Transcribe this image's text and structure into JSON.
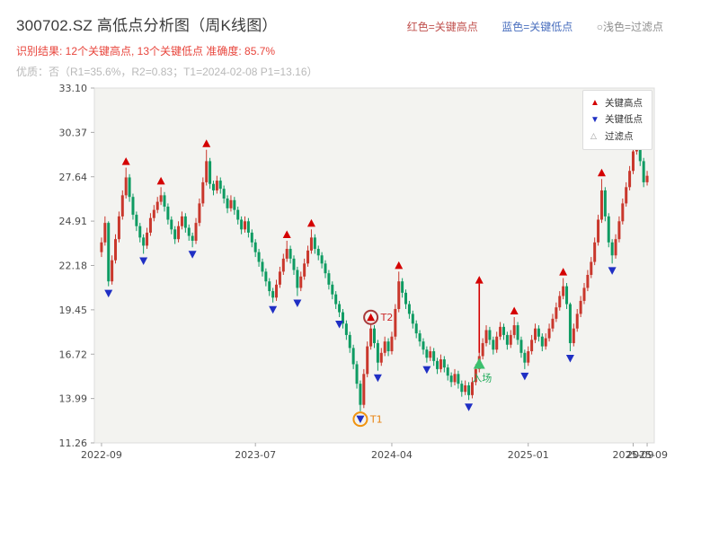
{
  "header": {
    "title": "300702.SZ 高低点分析图（周K线图）",
    "legend_high": "红色=关键高点",
    "legend_low": "蓝色=关键低点",
    "legend_filter": "○浅色=过滤点",
    "result_line": "识别结果: 12个关键高点, 13个关键低点  准确度: 85.7%",
    "quality_line": "优质：否（R1=35.6%，R2=0.83；T1=2024-02-08 P1=13.16）"
  },
  "chart_data": {
    "type": "candlestick",
    "title": "300702.SZ 高低点分析图（周K线图）",
    "ylim": [
      11.26,
      33.1
    ],
    "y_ticks": [
      33.1,
      30.37,
      27.64,
      24.91,
      22.18,
      19.45,
      16.72,
      13.99,
      11.26
    ],
    "x_ticks": [
      {
        "i": 0,
        "label": "2022-09"
      },
      {
        "i": 44,
        "label": "2023-07"
      },
      {
        "i": 83,
        "label": "2024-04"
      },
      {
        "i": 122,
        "label": "2025-01"
      },
      {
        "i": 152,
        "label": "2025-09"
      },
      {
        "i": 156,
        "label": "2025-09"
      }
    ],
    "inner_legend": {
      "high": "关键高点",
      "low": "关键低点",
      "filter": "过滤点"
    },
    "colors": {
      "up": "#c9372c",
      "down": "#0e9b62",
      "high_marker": "#d40000",
      "low_marker": "#1f2fc4",
      "plot_bg": "#f3f3f0",
      "plot_border": "#dddddd",
      "axis_text": "#4a4a4a"
    },
    "candles": [
      [
        23.0,
        23.9,
        22.7,
        23.6
      ],
      [
        23.6,
        25.2,
        23.4,
        24.8
      ],
      [
        24.8,
        24.9,
        20.9,
        21.2
      ],
      [
        21.2,
        22.8,
        21.0,
        22.5
      ],
      [
        22.5,
        24.1,
        22.3,
        23.8
      ],
      [
        23.8,
        25.5,
        23.6,
        25.2
      ],
      [
        25.2,
        26.8,
        25.0,
        26.5
      ],
      [
        26.5,
        28.2,
        26.3,
        27.6
      ],
      [
        27.6,
        27.8,
        26.1,
        26.4
      ],
      [
        26.4,
        26.6,
        25.0,
        25.3
      ],
      [
        25.3,
        25.5,
        24.3,
        24.6
      ],
      [
        24.6,
        24.8,
        23.6,
        23.9
      ],
      [
        23.9,
        24.1,
        22.9,
        23.4
      ],
      [
        23.4,
        24.5,
        23.2,
        24.2
      ],
      [
        24.2,
        25.4,
        24.0,
        25.1
      ],
      [
        25.1,
        25.9,
        24.9,
        25.6
      ],
      [
        25.6,
        26.4,
        25.4,
        26.1
      ],
      [
        26.1,
        27.0,
        25.9,
        26.5
      ],
      [
        26.5,
        26.7,
        25.5,
        25.8
      ],
      [
        25.8,
        26.0,
        24.7,
        25.0
      ],
      [
        25.0,
        25.2,
        24.1,
        24.4
      ],
      [
        24.4,
        24.6,
        23.5,
        23.8
      ],
      [
        23.8,
        24.9,
        23.6,
        24.6
      ],
      [
        24.6,
        25.5,
        24.4,
        25.2
      ],
      [
        25.2,
        25.4,
        24.2,
        24.5
      ],
      [
        24.5,
        24.7,
        23.7,
        24.0
      ],
      [
        24.0,
        24.2,
        23.3,
        23.7
      ],
      [
        23.7,
        25.1,
        23.5,
        24.8
      ],
      [
        24.8,
        26.3,
        24.6,
        26.0
      ],
      [
        26.0,
        27.6,
        25.8,
        27.3
      ],
      [
        27.3,
        29.3,
        27.1,
        28.6
      ],
      [
        28.6,
        28.8,
        26.9,
        27.2
      ],
      [
        27.2,
        27.4,
        26.5,
        26.8
      ],
      [
        26.8,
        27.7,
        26.6,
        27.4
      ],
      [
        27.4,
        27.6,
        26.6,
        26.9
      ],
      [
        26.9,
        27.1,
        26.0,
        26.3
      ],
      [
        26.3,
        26.5,
        25.4,
        25.7
      ],
      [
        25.7,
        26.5,
        25.5,
        26.2
      ],
      [
        26.2,
        26.4,
        25.3,
        25.6
      ],
      [
        25.6,
        25.8,
        24.7,
        25.0
      ],
      [
        25.0,
        25.2,
        24.1,
        24.4
      ],
      [
        24.4,
        25.2,
        24.2,
        24.9
      ],
      [
        24.9,
        25.1,
        23.9,
        24.2
      ],
      [
        24.2,
        24.4,
        23.3,
        23.6
      ],
      [
        23.6,
        23.8,
        22.7,
        23.0
      ],
      [
        23.0,
        23.2,
        22.1,
        22.4
      ],
      [
        22.4,
        22.6,
        21.5,
        21.8
      ],
      [
        21.8,
        22.0,
        20.9,
        21.2
      ],
      [
        21.2,
        21.4,
        20.3,
        20.6
      ],
      [
        20.6,
        20.8,
        19.9,
        20.2
      ],
      [
        20.2,
        21.3,
        20.0,
        21.0
      ],
      [
        21.0,
        22.1,
        20.8,
        21.8
      ],
      [
        21.8,
        22.9,
        21.6,
        22.6
      ],
      [
        22.6,
        23.7,
        22.4,
        23.2
      ],
      [
        23.2,
        23.4,
        22.3,
        22.6
      ],
      [
        22.6,
        22.8,
        21.6,
        21.9
      ],
      [
        21.9,
        22.1,
        20.3,
        20.8
      ],
      [
        20.8,
        21.8,
        20.6,
        21.5
      ],
      [
        21.5,
        22.6,
        21.3,
        22.3
      ],
      [
        22.3,
        23.4,
        22.1,
        23.1
      ],
      [
        23.1,
        24.4,
        22.9,
        23.9
      ],
      [
        23.9,
        24.1,
        22.9,
        23.2
      ],
      [
        23.2,
        23.4,
        22.5,
        22.8
      ],
      [
        22.8,
        23.0,
        22.0,
        22.3
      ],
      [
        22.3,
        22.5,
        21.4,
        21.7
      ],
      [
        21.7,
        21.9,
        20.7,
        21.0
      ],
      [
        21.0,
        21.2,
        20.1,
        20.4
      ],
      [
        20.4,
        20.6,
        19.5,
        19.8
      ],
      [
        19.8,
        20.0,
        19.0,
        19.3
      ],
      [
        19.3,
        19.5,
        18.3,
        18.6
      ],
      [
        18.6,
        18.8,
        17.6,
        17.9
      ],
      [
        17.9,
        18.1,
        16.8,
        17.1
      ],
      [
        17.1,
        17.3,
        15.8,
        16.1
      ],
      [
        16.1,
        16.3,
        14.6,
        14.9
      ],
      [
        14.9,
        15.1,
        13.2,
        13.6
      ],
      [
        13.6,
        15.8,
        13.4,
        15.5
      ],
      [
        15.5,
        17.5,
        15.3,
        17.2
      ],
      [
        17.2,
        18.6,
        17.0,
        18.3
      ],
      [
        18.3,
        18.5,
        17.1,
        17.4
      ],
      [
        17.4,
        17.6,
        15.7,
        16.2
      ],
      [
        16.2,
        17.1,
        16.0,
        16.8
      ],
      [
        16.8,
        17.8,
        16.6,
        17.5
      ],
      [
        17.5,
        17.7,
        16.6,
        16.9
      ],
      [
        16.9,
        18.1,
        16.7,
        17.8
      ],
      [
        17.8,
        19.8,
        17.6,
        19.5
      ],
      [
        19.5,
        21.8,
        19.3,
        21.2
      ],
      [
        21.2,
        21.4,
        20.2,
        20.5
      ],
      [
        20.5,
        20.7,
        19.5,
        19.8
      ],
      [
        19.8,
        20.0,
        18.9,
        19.2
      ],
      [
        19.2,
        19.4,
        18.3,
        18.6
      ],
      [
        18.6,
        18.8,
        17.7,
        18.0
      ],
      [
        18.0,
        18.2,
        17.2,
        17.5
      ],
      [
        17.5,
        17.7,
        16.7,
        17.0
      ],
      [
        17.0,
        17.2,
        16.2,
        16.5
      ],
      [
        16.5,
        17.2,
        16.3,
        16.9
      ],
      [
        16.9,
        17.1,
        16.0,
        16.3
      ],
      [
        16.3,
        16.5,
        15.5,
        15.8
      ],
      [
        15.8,
        16.7,
        15.6,
        16.4
      ],
      [
        16.4,
        16.6,
        15.6,
        15.9
      ],
      [
        15.9,
        16.1,
        15.1,
        15.4
      ],
      [
        15.4,
        15.6,
        14.7,
        15.0
      ],
      [
        15.0,
        15.8,
        14.8,
        15.5
      ],
      [
        15.5,
        15.7,
        14.6,
        14.9
      ],
      [
        14.9,
        15.1,
        14.1,
        14.4
      ],
      [
        14.4,
        15.1,
        14.2,
        14.8
      ],
      [
        14.8,
        15.0,
        13.9,
        14.2
      ],
      [
        14.2,
        15.3,
        14.0,
        15.0
      ],
      [
        15.0,
        16.1,
        14.8,
        15.8
      ],
      [
        15.8,
        17.0,
        15.6,
        16.6
      ],
      [
        16.6,
        17.7,
        16.4,
        17.4
      ],
      [
        17.4,
        18.5,
        17.2,
        18.2
      ],
      [
        18.2,
        18.4,
        17.3,
        17.6
      ],
      [
        17.6,
        17.8,
        16.7,
        17.0
      ],
      [
        17.0,
        18.1,
        16.8,
        17.8
      ],
      [
        17.8,
        18.7,
        17.6,
        18.4
      ],
      [
        18.4,
        18.6,
        17.6,
        17.9
      ],
      [
        17.9,
        18.1,
        17.0,
        17.3
      ],
      [
        17.3,
        18.2,
        17.1,
        17.9
      ],
      [
        17.9,
        19.0,
        17.7,
        18.5
      ],
      [
        18.5,
        18.7,
        17.3,
        17.6
      ],
      [
        17.6,
        17.8,
        16.5,
        16.8
      ],
      [
        16.8,
        17.0,
        15.8,
        16.2
      ],
      [
        16.2,
        17.2,
        16.0,
        16.9
      ],
      [
        16.9,
        17.9,
        16.7,
        17.6
      ],
      [
        17.6,
        18.6,
        17.4,
        18.3
      ],
      [
        18.3,
        18.5,
        17.5,
        17.8
      ],
      [
        17.8,
        18.0,
        16.9,
        17.2
      ],
      [
        17.2,
        18.0,
        17.0,
        17.7
      ],
      [
        17.7,
        18.6,
        17.5,
        18.3
      ],
      [
        18.3,
        19.2,
        18.1,
        18.9
      ],
      [
        18.9,
        19.9,
        18.7,
        19.6
      ],
      [
        19.6,
        20.6,
        19.4,
        20.3
      ],
      [
        20.3,
        21.4,
        20.1,
        20.9
      ],
      [
        20.9,
        21.1,
        19.5,
        19.8
      ],
      [
        19.8,
        19.9,
        16.9,
        17.4
      ],
      [
        17.4,
        18.6,
        17.2,
        18.3
      ],
      [
        18.3,
        19.5,
        18.1,
        19.2
      ],
      [
        19.2,
        20.3,
        19.0,
        20.0
      ],
      [
        20.0,
        21.1,
        19.8,
        20.8
      ],
      [
        20.8,
        21.9,
        20.6,
        21.6
      ],
      [
        21.6,
        22.7,
        21.4,
        22.4
      ],
      [
        22.4,
        23.9,
        22.2,
        23.6
      ],
      [
        23.6,
        25.3,
        23.4,
        25.0
      ],
      [
        25.0,
        27.5,
        24.8,
        26.8
      ],
      [
        26.8,
        27.0,
        24.9,
        25.2
      ],
      [
        25.2,
        25.4,
        23.3,
        23.6
      ],
      [
        23.6,
        23.8,
        22.3,
        22.8
      ],
      [
        22.8,
        24.1,
        22.6,
        23.8
      ],
      [
        23.8,
        25.2,
        23.6,
        24.9
      ],
      [
        24.9,
        26.3,
        24.7,
        26.0
      ],
      [
        26.0,
        27.3,
        25.8,
        27.0
      ],
      [
        27.0,
        28.3,
        26.8,
        28.0
      ],
      [
        28.0,
        29.5,
        27.8,
        29.2
      ],
      [
        29.2,
        31.0,
        29.0,
        30.3
      ],
      [
        30.3,
        30.5,
        28.3,
        28.6
      ],
      [
        28.6,
        28.8,
        27.0,
        27.3
      ],
      [
        27.3,
        28.0,
        27.1,
        27.7
      ]
    ],
    "key_highs": [
      {
        "i": 7,
        "p": 28.2
      },
      {
        "i": 17,
        "p": 27.0
      },
      {
        "i": 30,
        "p": 29.3
      },
      {
        "i": 53,
        "p": 23.7
      },
      {
        "i": 60,
        "p": 24.4
      },
      {
        "i": 77,
        "p": 18.6
      },
      {
        "i": 85,
        "p": 21.8
      },
      {
        "i": 108,
        "p": 20.9,
        "stem_from": 16.8
      },
      {
        "i": 118,
        "p": 19.0
      },
      {
        "i": 132,
        "p": 21.4
      },
      {
        "i": 143,
        "p": 27.5
      },
      {
        "i": 153,
        "p": 31.0
      }
    ],
    "key_lows": [
      {
        "i": 2,
        "p": 20.9
      },
      {
        "i": 12,
        "p": 22.9
      },
      {
        "i": 26,
        "p": 23.3
      },
      {
        "i": 49,
        "p": 19.9
      },
      {
        "i": 56,
        "p": 20.3
      },
      {
        "i": 68,
        "p": 19.0
      },
      {
        "i": 74,
        "p": 13.16
      },
      {
        "i": 79,
        "p": 15.7
      },
      {
        "i": 93,
        "p": 16.2
      },
      {
        "i": 105,
        "p": 13.9
      },
      {
        "i": 121,
        "p": 15.8
      },
      {
        "i": 134,
        "p": 16.9
      },
      {
        "i": 146,
        "p": 22.3
      }
    ],
    "annotations": [
      {
        "kind": "circle",
        "i": 77,
        "p": 18.6,
        "dy": -7,
        "color": "#a83a3a",
        "label": "T2",
        "label_color": "#cc2b2b"
      },
      {
        "kind": "circle",
        "i": 74,
        "p": 13.16,
        "dy": 8,
        "color": "#f0930f",
        "label": "T1",
        "label_color": "#e8820e"
      },
      {
        "kind": "triangle",
        "i": 108,
        "p": 16.1,
        "color": "#3cc06e",
        "label": "入场",
        "label_color": "#27ae60"
      }
    ]
  }
}
